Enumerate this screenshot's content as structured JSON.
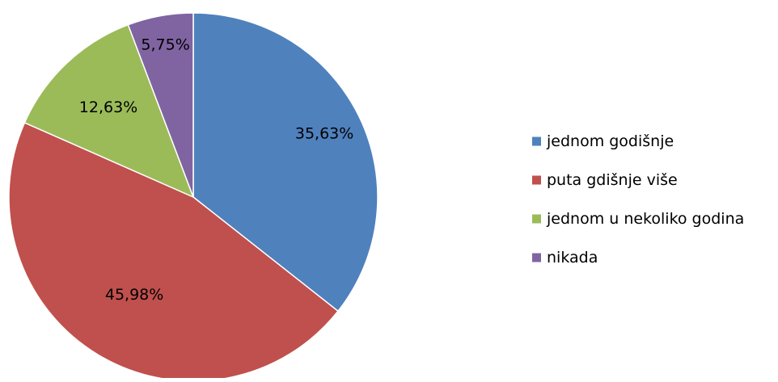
{
  "chart_data": {
    "type": "pie",
    "categories": [
      "jednom godišnje",
      "puta gdišnje više",
      "jednom u nekoliko godina",
      "nikada"
    ],
    "values": [
      35.63,
      45.98,
      12.63,
      5.75
    ],
    "data_labels": [
      "35,63%",
      "45,98%",
      "12,63%",
      "5,75%"
    ],
    "colors": [
      "#4f81bd",
      "#c0504d",
      "#9bbb59",
      "#8064a2"
    ],
    "start_angle": "12 o'clock",
    "direction": "clockwise",
    "legend": {
      "position": "right",
      "entries": [
        "jednom godišnje",
        "puta gdišnje više",
        "jednom u nekoliko godina",
        "nikada"
      ]
    }
  }
}
